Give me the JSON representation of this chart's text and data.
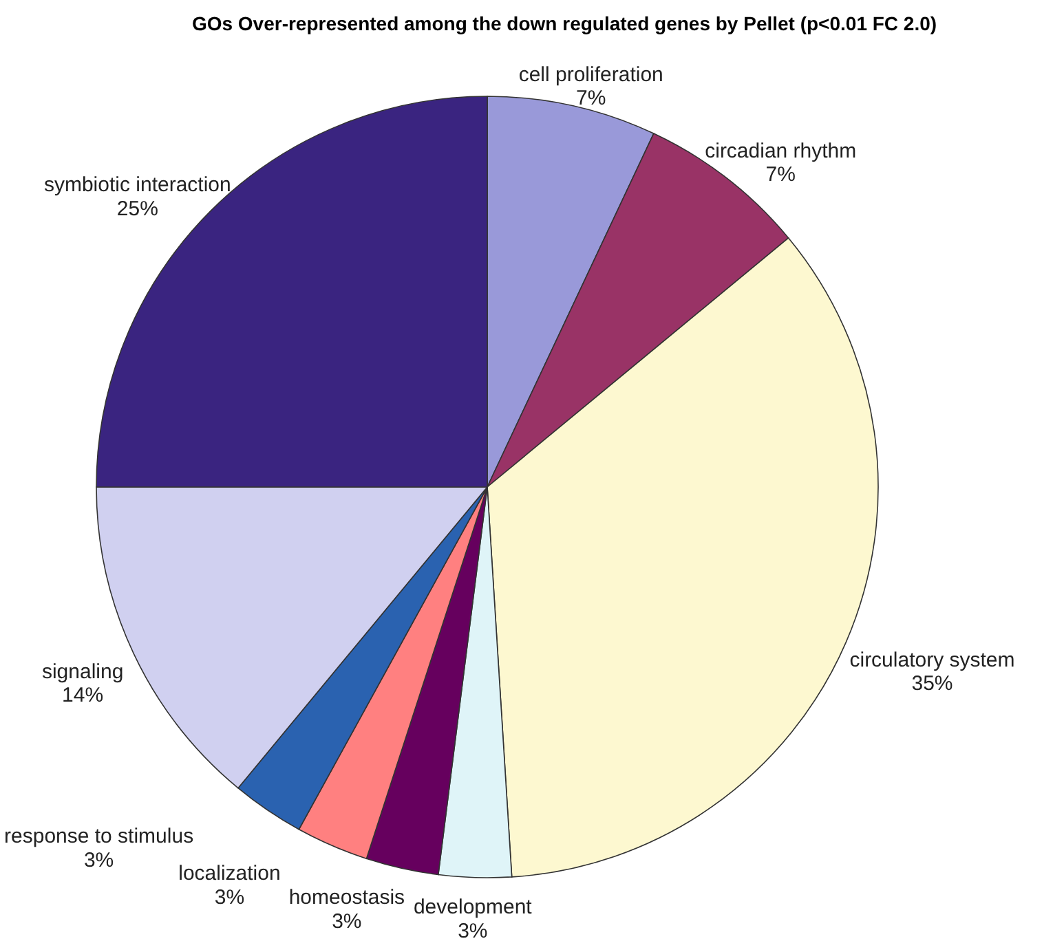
{
  "chart_data": {
    "type": "pie",
    "title": "GOs Over-represented among the down regulated genes by Pellet (p<0.01 FC 2.0)",
    "categories": [
      "cell proliferation",
      "circadian rhythm",
      "circulatory system",
      "development",
      "homeostasis",
      "localization",
      "response to stimulus",
      "signaling",
      "symbiotic interaction"
    ],
    "values": [
      7,
      7,
      35,
      3,
      3,
      3,
      3,
      14,
      25
    ],
    "colors": [
      "#9999d9",
      "#993366",
      "#fdf8d0",
      "#dff4f8",
      "#66005e",
      "#ff8080",
      "#2a62b0",
      "#d0d0f0",
      "#3a2480"
    ],
    "value_labels": [
      "7%",
      "7%",
      "35%",
      "3%",
      "3%",
      "3%",
      "3%",
      "14%",
      "25%"
    ]
  }
}
